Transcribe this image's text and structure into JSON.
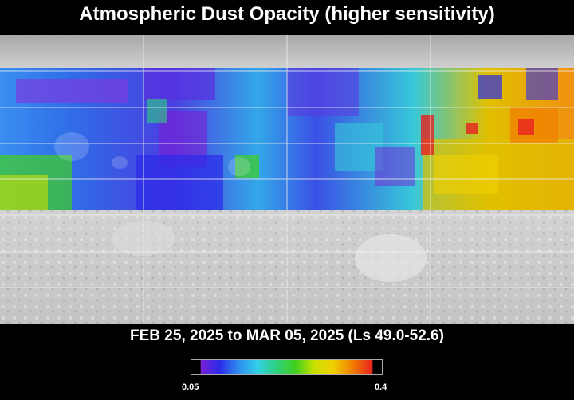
{
  "title": "Atmospheric Dust Opacity (higher sensitivity)",
  "date_range": "FEB 25, 2025 to MAR 05, 2025 (Ls 49.0-52.6)",
  "colorbar": {
    "min_label": "0.05",
    "max_label": "0.4",
    "colors": [
      "#7a1fd6",
      "#2b2be8",
      "#2f8cf0",
      "#33d0e8",
      "#2fd080",
      "#40d020",
      "#c8e000",
      "#f0d000",
      "#f08000",
      "#e82020"
    ]
  },
  "map": {
    "background_color": "#bdbdbd",
    "grid_color": "#f0f0f0"
  }
}
